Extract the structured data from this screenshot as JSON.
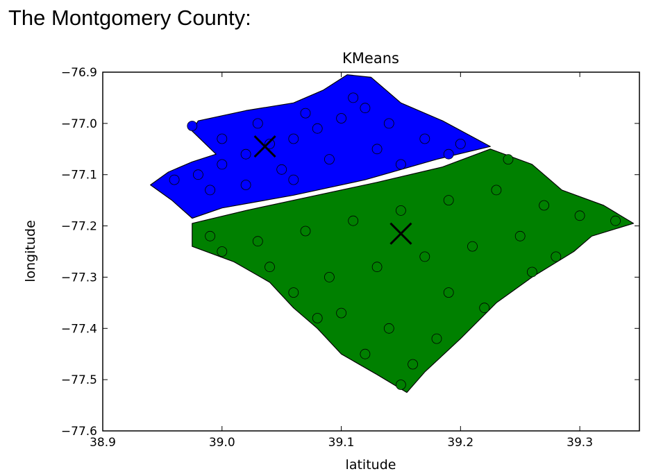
{
  "page": {
    "heading": "The Montgomery County:"
  },
  "chart_data": {
    "type": "scatter",
    "title": "KMeans",
    "xlabel": "latitude",
    "ylabel": "longitude",
    "xlim": [
      38.9,
      39.35
    ],
    "ylim": [
      -77.6,
      -76.9
    ],
    "xticks": [
      {
        "value": 38.9,
        "label": "38.9"
      },
      {
        "value": 39.0,
        "label": "39.0"
      },
      {
        "value": 39.1,
        "label": "39.1"
      },
      {
        "value": 39.2,
        "label": "39.2"
      },
      {
        "value": 39.3,
        "label": "39.3"
      }
    ],
    "yticks": [
      {
        "value": -76.9,
        "label": "−76.9"
      },
      {
        "value": -77.0,
        "label": "−77.0"
      },
      {
        "value": -77.1,
        "label": "−77.1"
      },
      {
        "value": -77.2,
        "label": "−77.2"
      },
      {
        "value": -77.3,
        "label": "−77.3"
      },
      {
        "value": -77.4,
        "label": "−77.4"
      },
      {
        "value": -77.5,
        "label": "−77.5"
      },
      {
        "value": -77.6,
        "label": "−77.6"
      }
    ],
    "grid": false,
    "series": [
      {
        "color": "#0000ff",
        "region": [
          [
            38.94,
            -77.12
          ],
          [
            38.955,
            -77.095
          ],
          [
            38.975,
            -77.075
          ],
          [
            38.995,
            -77.06
          ],
          [
            38.975,
            -77.015
          ],
          [
            38.98,
            -76.995
          ],
          [
            39.02,
            -76.975
          ],
          [
            39.06,
            -76.96
          ],
          [
            39.085,
            -76.935
          ],
          [
            39.105,
            -76.905
          ],
          [
            39.125,
            -76.91
          ],
          [
            39.15,
            -76.96
          ],
          [
            39.185,
            -76.995
          ],
          [
            39.225,
            -77.045
          ],
          [
            39.18,
            -77.07
          ],
          [
            39.12,
            -77.11
          ],
          [
            39.06,
            -77.14
          ],
          [
            39.0,
            -77.165
          ],
          [
            38.975,
            -77.185
          ],
          [
            38.958,
            -77.15
          ]
        ],
        "points": [
          [
            39.04,
            -77.04
          ],
          [
            39.06,
            -77.03
          ],
          [
            39.08,
            -77.01
          ],
          [
            39.1,
            -76.99
          ],
          [
            39.12,
            -76.97
          ],
          [
            39.02,
            -77.06
          ],
          [
            39.0,
            -77.08
          ],
          [
            38.98,
            -77.1
          ],
          [
            38.96,
            -77.11
          ],
          [
            39.05,
            -77.09
          ],
          [
            39.09,
            -77.07
          ],
          [
            39.13,
            -77.05
          ],
          [
            39.17,
            -77.03
          ],
          [
            39.2,
            -77.04
          ],
          [
            39.14,
            -77.0
          ],
          [
            39.11,
            -76.95
          ],
          [
            39.07,
            -76.98
          ],
          [
            39.03,
            -77.0
          ],
          [
            39.0,
            -77.03
          ],
          [
            38.99,
            -77.13
          ],
          [
            39.02,
            -77.12
          ],
          [
            39.06,
            -77.11
          ],
          [
            39.15,
            -77.08
          ],
          [
            39.19,
            -77.06
          ],
          [
            38.975,
            -77.005
          ]
        ]
      },
      {
        "color": "#008000",
        "region": [
          [
            38.975,
            -77.195
          ],
          [
            39.02,
            -77.17
          ],
          [
            39.07,
            -77.145
          ],
          [
            39.13,
            -77.115
          ],
          [
            39.185,
            -77.085
          ],
          [
            39.225,
            -77.05
          ],
          [
            39.26,
            -77.08
          ],
          [
            39.285,
            -77.13
          ],
          [
            39.32,
            -77.16
          ],
          [
            39.345,
            -77.195
          ],
          [
            39.31,
            -77.22
          ],
          [
            39.295,
            -77.25
          ],
          [
            39.26,
            -77.3
          ],
          [
            39.23,
            -77.35
          ],
          [
            39.2,
            -77.42
          ],
          [
            39.17,
            -77.485
          ],
          [
            39.155,
            -77.525
          ],
          [
            39.13,
            -77.49
          ],
          [
            39.1,
            -77.45
          ],
          [
            39.08,
            -77.4
          ],
          [
            39.06,
            -77.36
          ],
          [
            39.04,
            -77.31
          ],
          [
            39.01,
            -77.27
          ],
          [
            38.975,
            -77.24
          ]
        ],
        "points": [
          [
            38.99,
            -77.22
          ],
          [
            39.03,
            -77.23
          ],
          [
            39.07,
            -77.21
          ],
          [
            39.11,
            -77.19
          ],
          [
            39.15,
            -77.17
          ],
          [
            39.19,
            -77.15
          ],
          [
            39.23,
            -77.13
          ],
          [
            39.27,
            -77.16
          ],
          [
            39.3,
            -77.18
          ],
          [
            39.33,
            -77.19
          ],
          [
            39.25,
            -77.22
          ],
          [
            39.21,
            -77.24
          ],
          [
            39.17,
            -77.26
          ],
          [
            39.13,
            -77.28
          ],
          [
            39.09,
            -77.3
          ],
          [
            39.06,
            -77.33
          ],
          [
            39.1,
            -77.37
          ],
          [
            39.14,
            -77.4
          ],
          [
            39.18,
            -77.42
          ],
          [
            39.22,
            -77.36
          ],
          [
            39.26,
            -77.29
          ],
          [
            39.16,
            -77.47
          ],
          [
            39.15,
            -77.51
          ],
          [
            39.12,
            -77.45
          ],
          [
            39.08,
            -77.38
          ],
          [
            39.04,
            -77.28
          ],
          [
            39.0,
            -77.25
          ],
          [
            39.24,
            -77.07
          ],
          [
            39.28,
            -77.26
          ],
          [
            39.19,
            -77.33
          ]
        ]
      }
    ],
    "centroids": [
      {
        "x": 39.036,
        "y": -77.045,
        "marker": "x",
        "color": "#000000"
      },
      {
        "x": 39.15,
        "y": -77.215,
        "marker": "x",
        "color": "#000000"
      }
    ]
  }
}
